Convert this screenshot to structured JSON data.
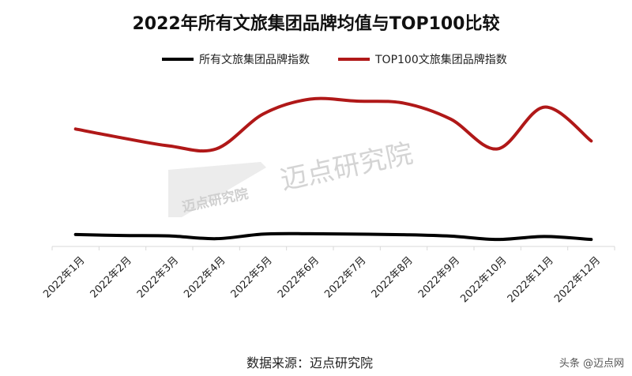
{
  "chart_data": {
    "type": "line",
    "title": "2022年所有文旅集团品牌均值与TOP100比较",
    "xlabel": "",
    "ylabel": "",
    "categories": [
      "2022年1月",
      "2022年2月",
      "2022年3月",
      "2022年4月",
      "2022年5月",
      "2022年6月",
      "2022年7月",
      "2022年8月",
      "2022年9月",
      "2022年10月",
      "2022年11月",
      "2022年12月"
    ],
    "series": [
      {
        "name": "所有文旅集团品牌指数",
        "color": "#000000",
        "values": [
          6.0,
          5.5,
          5.3,
          3.9,
          6.2,
          6.4,
          6.2,
          5.9,
          5.2,
          3.5,
          5.0,
          3.5
        ]
      },
      {
        "name": "TOP100文旅集团品牌指数",
        "color": "#b01818",
        "values": [
          59.0,
          54.5,
          50.5,
          49.0,
          66.5,
          74.0,
          73.0,
          72.0,
          64.0,
          49.0,
          70.0,
          53.0
        ]
      }
    ],
    "ylim": [
      0,
      100
    ],
    "grid": false,
    "legend_position": "top-center"
  },
  "watermark": {
    "brand": "迈点研究院",
    "brand_small": "迈点研究院"
  },
  "footer": {
    "source": "数据来源：迈点研究院",
    "credit": "头条 @迈点网"
  }
}
